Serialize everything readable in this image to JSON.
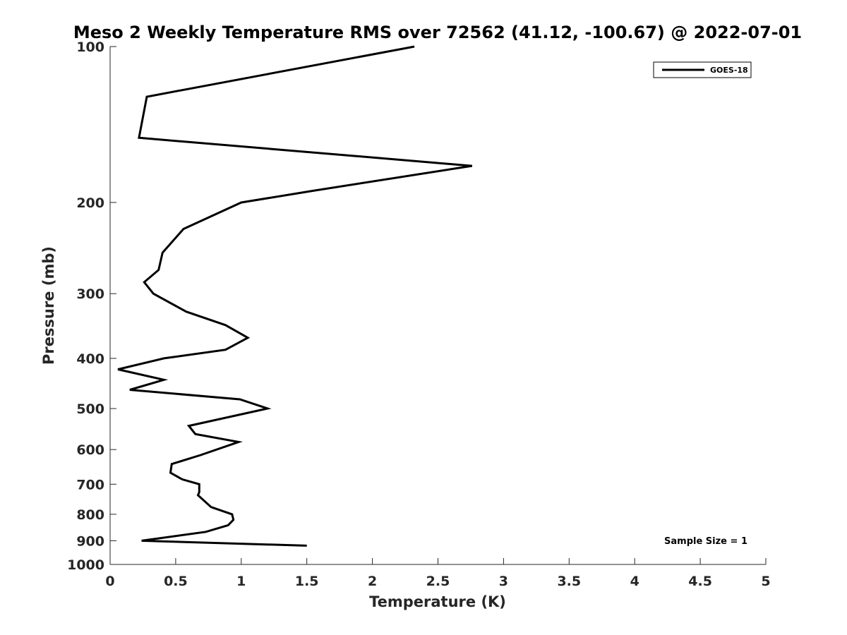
{
  "chart_data": {
    "type": "line",
    "title": "Meso 2 Weekly Temperature RMS over 72562 (41.12, -100.67) @ 2022-07-01",
    "xlabel": "Temperature (K)",
    "ylabel": "Pressure (mb)",
    "xlim": [
      0,
      5
    ],
    "ylim": [
      100,
      1000
    ],
    "y_scale": "log",
    "y_reversed": true,
    "x_ticks": [
      "0",
      "0.5",
      "1",
      "1.5",
      "2",
      "2.5",
      "3",
      "3.5",
      "4",
      "4.5",
      "5"
    ],
    "y_ticks": [
      "100",
      "200",
      "300",
      "400",
      "500",
      "600",
      "700",
      "800",
      "900",
      "1000"
    ],
    "grid": false,
    "legend_position": "top-right",
    "series": [
      {
        "name": "GOES-18",
        "color": "#000000",
        "points": [
          [
            2.32,
            100
          ],
          [
            0.28,
            125
          ],
          [
            0.22,
            150
          ],
          [
            2.76,
            170
          ],
          [
            1.54,
            190
          ],
          [
            1.0,
            200
          ],
          [
            0.56,
            225
          ],
          [
            0.4,
            250
          ],
          [
            0.37,
            270
          ],
          [
            0.26,
            285
          ],
          [
            0.33,
            300
          ],
          [
            0.58,
            325
          ],
          [
            0.88,
            345
          ],
          [
            1.05,
            365
          ],
          [
            0.88,
            385
          ],
          [
            0.41,
            400
          ],
          [
            0.06,
            420
          ],
          [
            0.41,
            440
          ],
          [
            0.15,
            460
          ],
          [
            0.99,
            480
          ],
          [
            1.2,
            500
          ],
          [
            0.6,
            540
          ],
          [
            0.65,
            560
          ],
          [
            0.98,
            580
          ],
          [
            0.69,
            615
          ],
          [
            0.47,
            640
          ],
          [
            0.46,
            665
          ],
          [
            0.55,
            685
          ],
          [
            0.68,
            700
          ],
          [
            0.68,
            725
          ],
          [
            0.67,
            735
          ],
          [
            0.77,
            775
          ],
          [
            0.93,
            800
          ],
          [
            0.94,
            820
          ],
          [
            0.9,
            840
          ],
          [
            0.73,
            865
          ],
          [
            0.24,
            900
          ],
          [
            1.5,
            920
          ]
        ]
      }
    ],
    "annotation": "Sample Size = 1"
  }
}
